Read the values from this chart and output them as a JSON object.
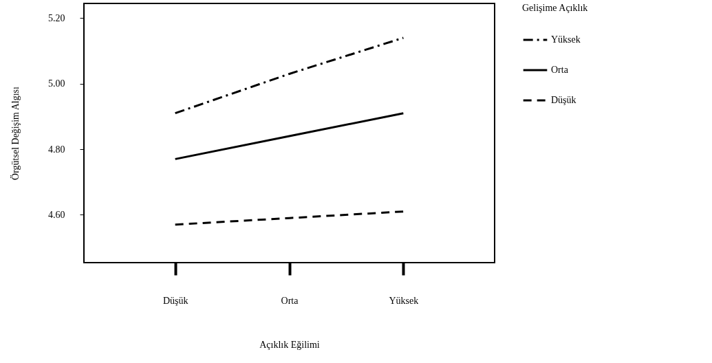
{
  "chart_data": {
    "type": "line",
    "xlabel": "Açıklık Eğilimi",
    "ylabel": "Örgütsel Değişim Algısı",
    "legend_title": "Gelişime Açıklık",
    "categories": [
      "Düşük",
      "Orta",
      "Yüksek"
    ],
    "ylim": [
      4.454,
      5.245
    ],
    "yticks": [
      {
        "value": 4.6,
        "label": "4.60"
      },
      {
        "value": 4.8,
        "label": "4.80"
      },
      {
        "value": 5.0,
        "label": "5.00"
      },
      {
        "value": 5.2,
        "label": "5.20"
      }
    ],
    "series": [
      {
        "name": "Yüksek",
        "color": "#000000",
        "line_style": "dashdot",
        "values": [
          4.91,
          5.03,
          5.14
        ]
      },
      {
        "name": "Orta",
        "color": "#000000",
        "line_style": "solid",
        "values": [
          4.77,
          4.84,
          4.91
        ]
      },
      {
        "name": "Düşük",
        "color": "#000000",
        "line_style": "dashed",
        "values": [
          4.57,
          4.59,
          4.61
        ]
      }
    ],
    "grid": false,
    "legend": "right"
  }
}
